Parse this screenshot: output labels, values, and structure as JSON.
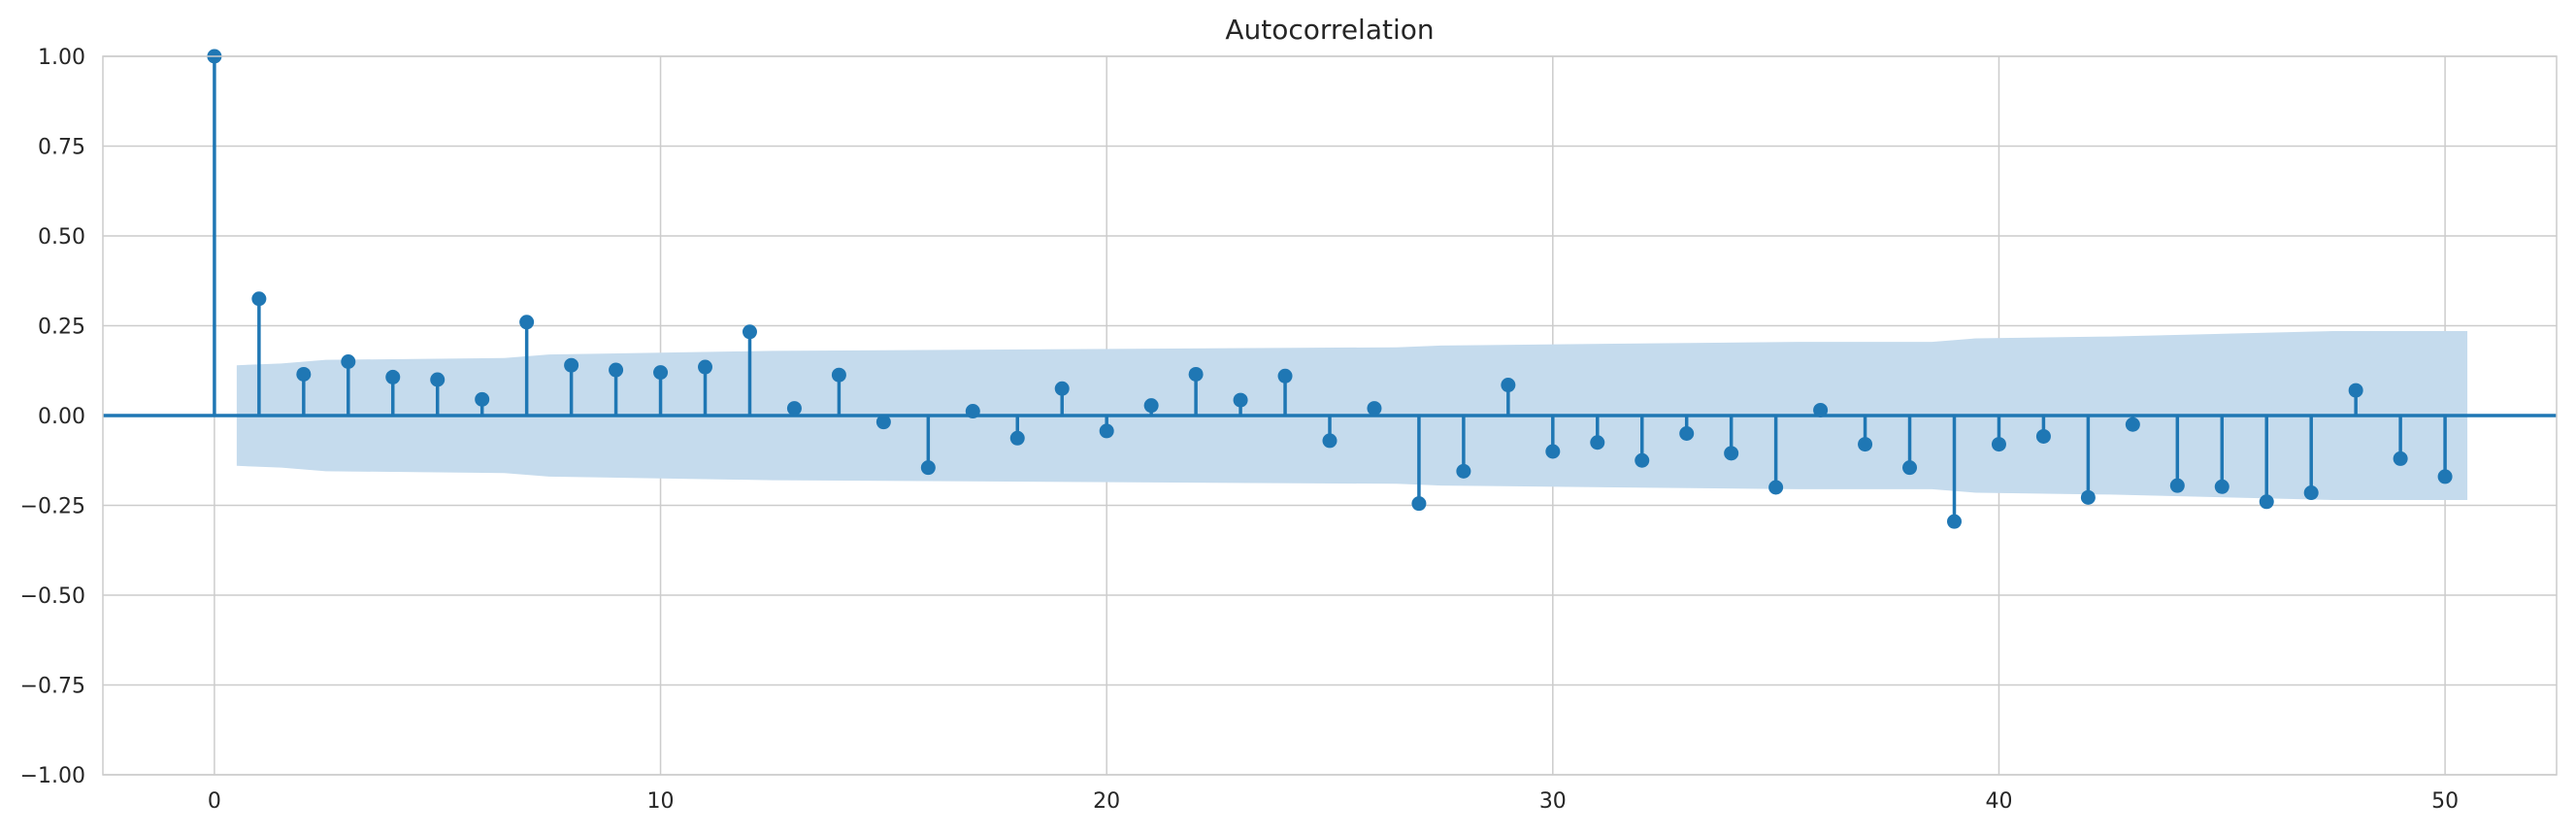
{
  "chart_data": {
    "type": "stem",
    "title": "Autocorrelation",
    "xlabel": "",
    "ylabel": "",
    "xlim": [
      -2.5,
      52.5
    ],
    "ylim": [
      -1.0,
      1.0
    ],
    "x_ticks": [
      0,
      10,
      20,
      30,
      40,
      50
    ],
    "x_tick_labels": [
      "0",
      "10",
      "20",
      "30",
      "40",
      "50"
    ],
    "y_ticks": [
      1.0,
      0.75,
      0.5,
      0.25,
      0.0,
      -0.25,
      -0.5,
      -0.75,
      -1.0
    ],
    "y_tick_labels": [
      "1.00",
      "0.75",
      "0.50",
      "0.25",
      "0.00",
      "−0.25",
      "−0.50",
      "−0.75",
      "−1.00"
    ],
    "grid": true,
    "x": [
      0,
      1,
      2,
      3,
      4,
      5,
      6,
      7,
      8,
      9,
      10,
      11,
      12,
      13,
      14,
      15,
      16,
      17,
      18,
      19,
      20,
      21,
      22,
      23,
      24,
      25,
      26,
      27,
      28,
      29,
      30,
      31,
      32,
      33,
      34,
      35,
      36,
      37,
      38,
      39,
      40,
      41,
      42,
      43,
      44,
      45,
      46,
      47,
      48,
      49,
      50
    ],
    "values": [
      1.0,
      0.325,
      0.115,
      0.15,
      0.107,
      0.1,
      0.045,
      0.26,
      0.14,
      0.127,
      0.12,
      0.135,
      0.233,
      0.02,
      0.113,
      -0.018,
      -0.145,
      0.012,
      -0.063,
      0.075,
      -0.043,
      0.028,
      0.115,
      0.043,
      0.11,
      -0.07,
      0.02,
      -0.245,
      -0.155,
      0.085,
      -0.1,
      -0.075,
      -0.125,
      -0.05,
      -0.105,
      -0.2,
      0.015,
      -0.08,
      -0.145,
      -0.295,
      -0.08,
      -0.058,
      -0.228,
      -0.025,
      -0.195,
      -0.198,
      -0.24,
      -0.215,
      0.07,
      -0.12,
      -0.17
    ],
    "confidence_band": {
      "x": [
        0.5,
        1.5,
        2.5,
        6.5,
        7.5,
        12.5,
        26.5,
        27.5,
        35.5,
        38.5,
        39.5,
        42.5,
        47.5,
        50.5
      ],
      "upper": [
        0.14,
        0.145,
        0.155,
        0.16,
        0.17,
        0.18,
        0.19,
        0.195,
        0.205,
        0.205,
        0.215,
        0.22,
        0.235,
        0.235
      ],
      "lower": [
        -0.14,
        -0.145,
        -0.155,
        -0.16,
        -0.17,
        -0.18,
        -0.19,
        -0.195,
        -0.205,
        -0.205,
        -0.215,
        -0.22,
        -0.235,
        -0.235
      ]
    },
    "colors": {
      "stem": "#1f77b4",
      "band": "#c5dbed",
      "grid": "#cccccc",
      "axis": "#cccccc"
    }
  }
}
